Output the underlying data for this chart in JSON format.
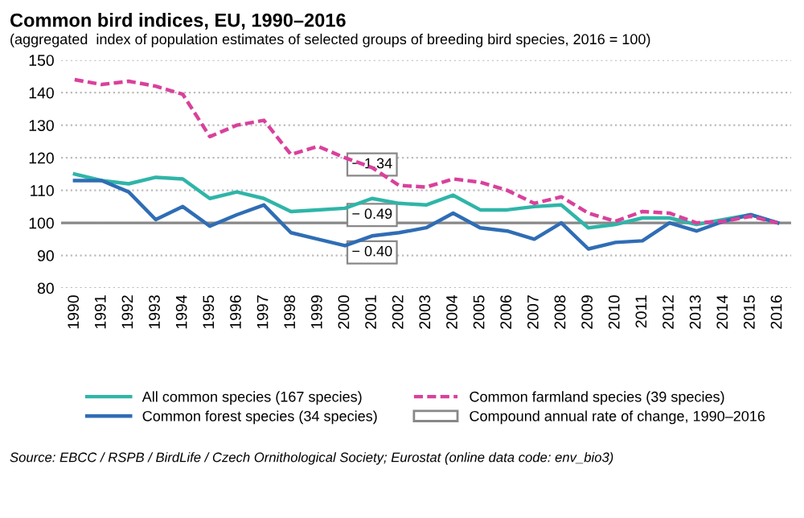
{
  "chart_data": {
    "type": "line",
    "title": "Common bird indices, EU, 1990–2016",
    "subtitle": "(aggregated  index of population estimates of selected groups of breeding bird species, 2016 = 100)",
    "categories": [
      "1990",
      "1991",
      "1992",
      "1993",
      "1994",
      "1995",
      "1996",
      "1997",
      "1998",
      "1999",
      "2000",
      "2001",
      "2002",
      "2003",
      "2004",
      "2005",
      "2006",
      "2007",
      "2008",
      "2009",
      "2010",
      "2011",
      "2012",
      "2013",
      "2014",
      "2015",
      "2016"
    ],
    "series": [
      {
        "name": "All common species (167 species)",
        "color": "#2fb5a8",
        "line_style": "solid",
        "values": [
          115,
          113,
          112,
          114,
          113.5,
          107.5,
          109.5,
          107.5,
          103.5,
          104,
          104.5,
          107.5,
          106,
          105.5,
          108.5,
          104,
          104,
          105,
          105.5,
          98.5,
          99.5,
          101.5,
          101.5,
          99.5,
          101,
          102.5,
          100
        ]
      },
      {
        "name": "Common farmland species (39 species)",
        "color": "#d9419c",
        "line_style": "dashed",
        "values": [
          144,
          142.5,
          143.5,
          142,
          139.5,
          126.5,
          130,
          131.5,
          121,
          123.5,
          120,
          117,
          111.5,
          111,
          113.5,
          112.5,
          110,
          106,
          108,
          103,
          100.5,
          103.5,
          103,
          100,
          100.5,
          102,
          100
        ]
      },
      {
        "name": "Common forest species (34 species)",
        "color": "#2f6db5",
        "line_style": "solid",
        "values": [
          113,
          113,
          109.5,
          101,
          105,
          99,
          102.5,
          105.5,
          97,
          95,
          93,
          96,
          97,
          98.5,
          103,
          98.5,
          97.5,
          95,
          100,
          92,
          94,
          94.5,
          100,
          97.5,
          100.5,
          102.5,
          100
        ]
      }
    ],
    "ylim": [
      80,
      150
    ],
    "yticks": [
      80,
      90,
      100,
      110,
      120,
      130,
      140,
      150
    ],
    "grid": "y",
    "legend": "bottom",
    "marker": "none",
    "ref_lines": [
      {
        "axis": "y",
        "value": 100,
        "color": "#888888"
      }
    ],
    "annotations": [
      "Compound annual rate of change, 1990–2016",
      "Source: EBCC / RSPB / BirdLife / Czech Ornithological Society; Eurostat (online data code: env_bio3)",
      {
        "text": "− 1.34",
        "x": "2000",
        "y": 120
      },
      {
        "text": "− 0.49",
        "x": "2000",
        "y": 104.5
      },
      {
        "text": "− 0.40",
        "x": "2000",
        "y": 93
      }
    ]
  }
}
